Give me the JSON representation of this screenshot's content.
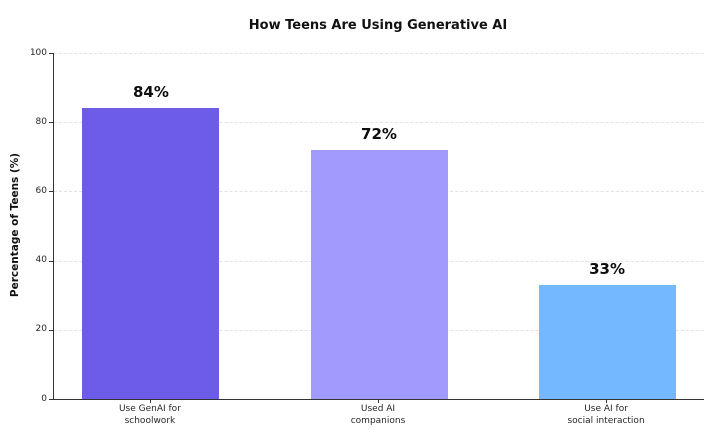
{
  "chart_data": {
    "type": "bar",
    "title": "How Teens Are Using Generative AI",
    "categories": [
      "Use GenAI for\nschoolwork",
      "Used AI\ncompanions",
      "Use AI for\nsocial interaction"
    ],
    "values": [
      84,
      72,
      33
    ],
    "value_labels": [
      "84%",
      "72%",
      "33%"
    ],
    "bar_colors": [
      "#6C5CE7",
      "#A29BFE",
      "#74B9FF"
    ],
    "xlabel": "",
    "ylabel": "Percentage of Teens (%)",
    "ylim": [
      0,
      100
    ],
    "yticks": [
      0,
      20,
      40,
      60,
      80,
      100
    ],
    "grid": "horizontal-dashed",
    "legend": "none",
    "colors": {
      "axis": "#333333",
      "gridline": "#e3e3e3",
      "text": "#111111",
      "tick_text": "#262626",
      "background": "#ffffff"
    }
  }
}
